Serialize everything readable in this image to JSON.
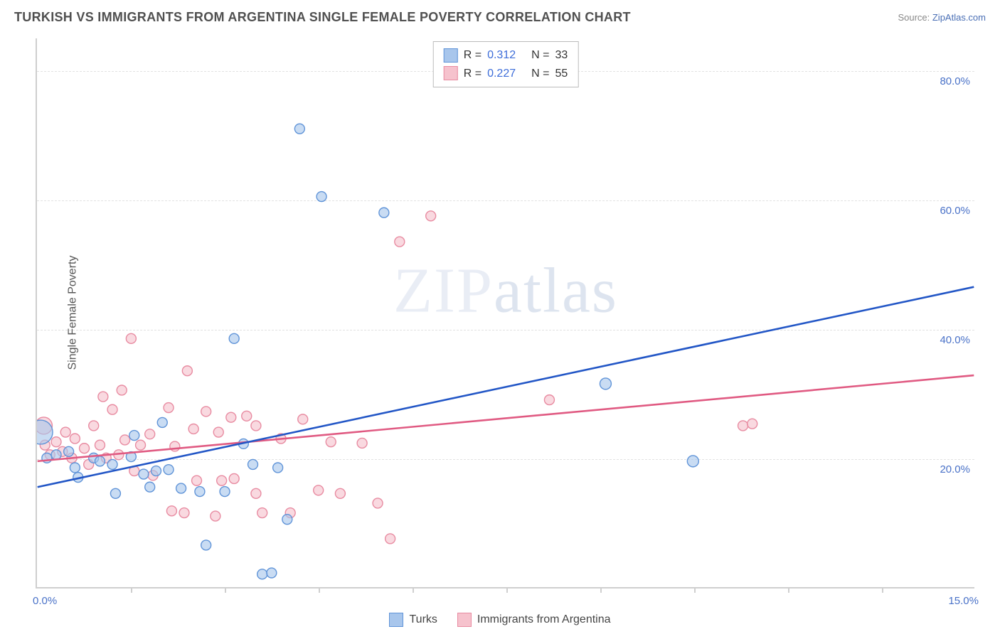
{
  "header": {
    "title": "TURKISH VS IMMIGRANTS FROM ARGENTINA SINGLE FEMALE POVERTY CORRELATION CHART",
    "source_label": "Source: ",
    "source_link": "ZipAtlas.com"
  },
  "chart": {
    "type": "scatter",
    "ylabel": "Single Female Poverty",
    "xlim": [
      0,
      15
    ],
    "ylim": [
      0,
      85
    ],
    "x_axis_left_label": "0.0%",
    "x_axis_right_label": "15.0%",
    "y_ticks": [
      {
        "v": 20,
        "label": "20.0%"
      },
      {
        "v": 40,
        "label": "40.0%"
      },
      {
        "v": 60,
        "label": "60.0%"
      },
      {
        "v": 80,
        "label": "80.0%"
      }
    ],
    "x_tick_positions": [
      1.5,
      3.0,
      4.5,
      6.0,
      7.5,
      9.0,
      10.5,
      12.0,
      13.5
    ],
    "watermark": "ZIPatlas",
    "background_color": "#ffffff",
    "grid_color": "#e2e2e2",
    "axis_label_color": "#4a72c8",
    "series": [
      {
        "name": "Turks",
        "legend_label": "Turks",
        "r_value": "0.312",
        "n_value": "33",
        "fill": "#a8c6ec",
        "stroke": "#6094d8",
        "line_color": "#2256c6",
        "trend": {
          "x1": 0,
          "y1": 15.5,
          "x2": 15,
          "y2": 46.5
        },
        "points": [
          {
            "x": 0.05,
            "y": 24,
            "r": 17
          },
          {
            "x": 0.15,
            "y": 20,
            "r": 7
          },
          {
            "x": 0.3,
            "y": 20.5,
            "r": 7
          },
          {
            "x": 0.5,
            "y": 21,
            "r": 7
          },
          {
            "x": 0.6,
            "y": 18.5,
            "r": 7
          },
          {
            "x": 0.65,
            "y": 17,
            "r": 7
          },
          {
            "x": 0.9,
            "y": 20,
            "r": 7
          },
          {
            "x": 1.0,
            "y": 19.5,
            "r": 7
          },
          {
            "x": 1.2,
            "y": 19,
            "r": 7
          },
          {
            "x": 1.25,
            "y": 14.5,
            "r": 7
          },
          {
            "x": 1.5,
            "y": 20.2,
            "r": 7
          },
          {
            "x": 1.55,
            "y": 23.5,
            "r": 7
          },
          {
            "x": 1.7,
            "y": 17.5,
            "r": 7
          },
          {
            "x": 1.8,
            "y": 15.5,
            "r": 7
          },
          {
            "x": 1.9,
            "y": 18,
            "r": 7
          },
          {
            "x": 2.0,
            "y": 25.5,
            "r": 7
          },
          {
            "x": 2.1,
            "y": 18.2,
            "r": 7
          },
          {
            "x": 2.3,
            "y": 15.3,
            "r": 7
          },
          {
            "x": 2.6,
            "y": 14.8,
            "r": 7
          },
          {
            "x": 2.7,
            "y": 6.5,
            "r": 7
          },
          {
            "x": 3.0,
            "y": 14.8,
            "r": 7
          },
          {
            "x": 3.15,
            "y": 38.5,
            "r": 7
          },
          {
            "x": 3.3,
            "y": 22.2,
            "r": 7
          },
          {
            "x": 3.45,
            "y": 19,
            "r": 7
          },
          {
            "x": 3.6,
            "y": 2.0,
            "r": 7
          },
          {
            "x": 3.75,
            "y": 2.2,
            "r": 7
          },
          {
            "x": 3.85,
            "y": 18.5,
            "r": 7
          },
          {
            "x": 4.0,
            "y": 10.5,
            "r": 7
          },
          {
            "x": 4.2,
            "y": 71.0,
            "r": 7
          },
          {
            "x": 4.55,
            "y": 60.5,
            "r": 7
          },
          {
            "x": 5.55,
            "y": 58.0,
            "r": 7
          },
          {
            "x": 9.1,
            "y": 31.5,
            "r": 8
          },
          {
            "x": 10.5,
            "y": 19.5,
            "r": 8
          }
        ]
      },
      {
        "name": "Immigrants from Argentina",
        "legend_label": "Immigrants from Argentina",
        "r_value": "0.227",
        "n_value": "55",
        "fill": "#f6c2cd",
        "stroke": "#e88ba1",
        "line_color": "#e05a82",
        "trend": {
          "x1": 0,
          "y1": 19.5,
          "x2": 15,
          "y2": 32.8
        },
        "points": [
          {
            "x": 0.1,
            "y": 25,
            "r": 12
          },
          {
            "x": 0.12,
            "y": 22,
            "r": 7
          },
          {
            "x": 0.2,
            "y": 20.5,
            "r": 7
          },
          {
            "x": 0.3,
            "y": 22.5,
            "r": 7
          },
          {
            "x": 0.4,
            "y": 21,
            "r": 7
          },
          {
            "x": 0.45,
            "y": 24,
            "r": 7
          },
          {
            "x": 0.55,
            "y": 20,
            "r": 7
          },
          {
            "x": 0.6,
            "y": 23,
            "r": 7
          },
          {
            "x": 0.75,
            "y": 21.5,
            "r": 7
          },
          {
            "x": 0.82,
            "y": 19,
            "r": 7
          },
          {
            "x": 0.9,
            "y": 25,
            "r": 7
          },
          {
            "x": 1.0,
            "y": 22,
            "r": 7
          },
          {
            "x": 1.05,
            "y": 29.5,
            "r": 7
          },
          {
            "x": 1.1,
            "y": 20,
            "r": 7
          },
          {
            "x": 1.2,
            "y": 27.5,
            "r": 7
          },
          {
            "x": 1.3,
            "y": 20.5,
            "r": 7
          },
          {
            "x": 1.35,
            "y": 30.5,
            "r": 7
          },
          {
            "x": 1.4,
            "y": 22.8,
            "r": 7
          },
          {
            "x": 1.5,
            "y": 38.5,
            "r": 7
          },
          {
            "x": 1.55,
            "y": 18,
            "r": 7
          },
          {
            "x": 1.65,
            "y": 22,
            "r": 7
          },
          {
            "x": 1.8,
            "y": 23.7,
            "r": 7
          },
          {
            "x": 1.85,
            "y": 17.3,
            "r": 7
          },
          {
            "x": 2.1,
            "y": 27.8,
            "r": 7
          },
          {
            "x": 2.15,
            "y": 11.8,
            "r": 7
          },
          {
            "x": 2.2,
            "y": 21.8,
            "r": 7
          },
          {
            "x": 2.35,
            "y": 11.5,
            "r": 7
          },
          {
            "x": 2.4,
            "y": 33.5,
            "r": 7
          },
          {
            "x": 2.5,
            "y": 24.5,
            "r": 7
          },
          {
            "x": 2.55,
            "y": 16.5,
            "r": 7
          },
          {
            "x": 2.7,
            "y": 27.2,
            "r": 7
          },
          {
            "x": 2.85,
            "y": 11.0,
            "r": 7
          },
          {
            "x": 2.9,
            "y": 24.0,
            "r": 7
          },
          {
            "x": 2.95,
            "y": 16.5,
            "r": 7
          },
          {
            "x": 3.1,
            "y": 26.3,
            "r": 7
          },
          {
            "x": 3.15,
            "y": 16.8,
            "r": 7
          },
          {
            "x": 3.35,
            "y": 26.5,
            "r": 7
          },
          {
            "x": 3.5,
            "y": 14.5,
            "r": 7
          },
          {
            "x": 3.5,
            "y": 25.0,
            "r": 7
          },
          {
            "x": 3.6,
            "y": 11.5,
            "r": 7
          },
          {
            "x": 3.9,
            "y": 23.0,
            "r": 7
          },
          {
            "x": 4.05,
            "y": 11.5,
            "r": 7
          },
          {
            "x": 4.25,
            "y": 26.0,
            "r": 7
          },
          {
            "x": 4.5,
            "y": 15.0,
            "r": 7
          },
          {
            "x": 4.7,
            "y": 22.5,
            "r": 7
          },
          {
            "x": 4.85,
            "y": 14.5,
            "r": 7
          },
          {
            "x": 5.2,
            "y": 22.3,
            "r": 7
          },
          {
            "x": 5.45,
            "y": 13.0,
            "r": 7
          },
          {
            "x": 5.65,
            "y": 7.5,
            "r": 7
          },
          {
            "x": 5.8,
            "y": 53.5,
            "r": 7
          },
          {
            "x": 6.3,
            "y": 57.5,
            "r": 7
          },
          {
            "x": 8.2,
            "y": 29.0,
            "r": 7
          },
          {
            "x": 11.3,
            "y": 25.0,
            "r": 7
          },
          {
            "x": 11.45,
            "y": 25.3,
            "r": 7
          }
        ]
      }
    ],
    "legend_top_labels": {
      "R": "R  =",
      "N": "N  ="
    }
  }
}
